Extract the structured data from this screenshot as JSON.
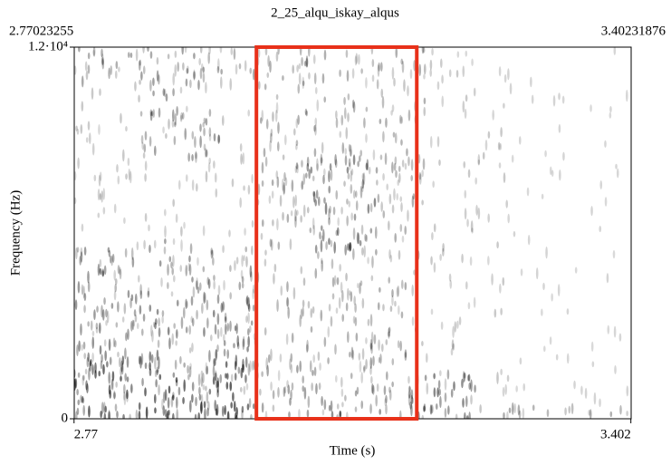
{
  "chart_data": {
    "type": "spectrogram",
    "title": "2_25_alqu_iskay_alqus",
    "xlim": [
      2.77023255,
      3.40231876
    ],
    "xticks": [
      2.77,
      3.402
    ],
    "ylim": [
      0,
      12000
    ],
    "yticks": [
      0,
      {
        "value": 12000,
        "label": "1.2·10⁴"
      }
    ],
    "xlabel": "Time (s)",
    "ylabel": "Frequency (Hz)",
    "highlight": {
      "x": [
        2.977,
        3.159
      ],
      "color": "#e8311a"
    }
  }
}
